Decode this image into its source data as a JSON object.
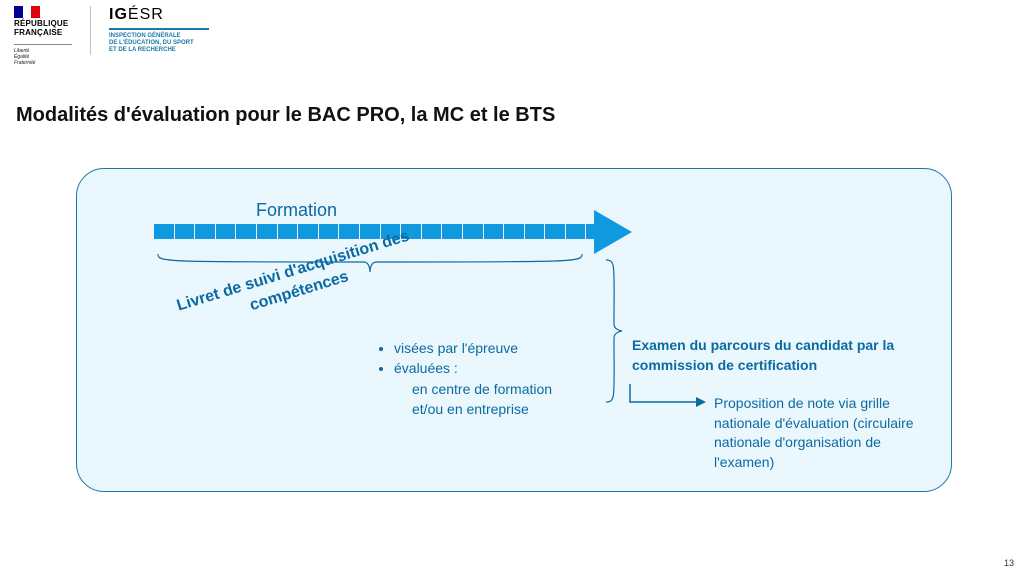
{
  "colors": {
    "panel_bg": "#eaf7fd",
    "panel_border": "#1a7aa8",
    "text_primary": "#0b6aa3",
    "arrow_fill": "#0f9ae0",
    "flag_blue": "#000091",
    "flag_white": "#ffffff",
    "flag_red": "#e1000f",
    "igesr_accent": "#1a7aa8"
  },
  "header": {
    "rf_line1": "RÉPUBLIQUE",
    "rf_line2": "FRANÇAISE",
    "rf_motto": "Liberté\nÉgalité\nFraternité",
    "igesr_bold": "IG",
    "igesr_rest": "ÉSR",
    "igesr_sub": "INSPECTION GÉNÉRALE\nDE L'ÉDUCATION, DU SPORT\nET DE LA RECHERCHE"
  },
  "title": "Modalités d'évaluation pour le BAC PRO, la MC et le BTS",
  "formation_label": "Formation",
  "timeline": {
    "segments": 22
  },
  "diagonal_label": "Livret de suivi d'acquisition des compétences",
  "bullets": {
    "item1": "visées par l'épreuve",
    "item2": "évaluées :",
    "item2_sub1": "en centre de formation",
    "item2_sub2": "et/ou en entreprise"
  },
  "right": {
    "heading": "Examen du parcours du candidat par la commission de certification",
    "sub": "Proposition de note via grille nationale d'évaluation (circulaire nationale d'organisation de l'examen)"
  },
  "page_number": "13"
}
